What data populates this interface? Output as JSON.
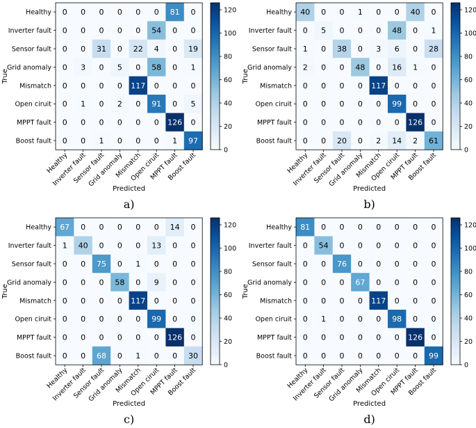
{
  "chart_data": [
    {
      "type": "heatmap",
      "label": "a)",
      "xlabel": "Predicted",
      "ylabel": "True",
      "row_labels": [
        "Healthy",
        "Inverter fault",
        "Sensor fault",
        "Grid anomaly",
        "Mismatch",
        "Open ciruit",
        "MPPT fault",
        "Boost fault"
      ],
      "col_labels": [
        "Healthy",
        "Inverter fault",
        "Sensor fault",
        "Grid anomaly",
        "Mismatch",
        "Open ciruit",
        "MPPT fault",
        "Boost fault"
      ],
      "matrix": [
        [
          0,
          0,
          0,
          0,
          0,
          0,
          81,
          0
        ],
        [
          0,
          0,
          0,
          0,
          0,
          54,
          0,
          0
        ],
        [
          0,
          0,
          31,
          0,
          22,
          4,
          0,
          19
        ],
        [
          0,
          3,
          0,
          5,
          0,
          58,
          0,
          1
        ],
        [
          0,
          0,
          0,
          0,
          117,
          0,
          0,
          0
        ],
        [
          0,
          1,
          0,
          2,
          0,
          91,
          0,
          5
        ],
        [
          0,
          0,
          0,
          0,
          0,
          0,
          126,
          0
        ],
        [
          0,
          0,
          1,
          0,
          0,
          0,
          1,
          97
        ]
      ],
      "vmin": 0,
      "vmax": 126,
      "colorbar_ticks": [
        0,
        20,
        40,
        60,
        80,
        100,
        120
      ],
      "colormap": "Blues"
    },
    {
      "type": "heatmap",
      "label": "b)",
      "xlabel": "Predicted",
      "ylabel": "True",
      "row_labels": [
        "Healthy",
        "Inverter fault",
        "Sensor fault",
        "Grid anomaly",
        "Mismatch",
        "Open ciruit",
        "MPPT fault",
        "Boost fault"
      ],
      "col_labels": [
        "Healthy",
        "Inverter fault",
        "Sensor fault",
        "Grid anomaly",
        "Mismatch",
        "Open ciruit",
        "MPPT fault",
        "Boost fault"
      ],
      "matrix": [
        [
          40,
          0,
          0,
          1,
          0,
          0,
          40,
          0
        ],
        [
          0,
          5,
          0,
          0,
          0,
          48,
          0,
          1
        ],
        [
          1,
          0,
          38,
          0,
          3,
          6,
          0,
          28
        ],
        [
          2,
          0,
          0,
          48,
          0,
          16,
          1,
          0
        ],
        [
          0,
          0,
          0,
          0,
          117,
          0,
          0,
          0
        ],
        [
          0,
          0,
          0,
          0,
          0,
          99,
          0,
          0
        ],
        [
          0,
          0,
          0,
          0,
          0,
          0,
          126,
          0
        ],
        [
          0,
          0,
          20,
          0,
          2,
          14,
          2,
          61
        ]
      ],
      "vmin": 0,
      "vmax": 126,
      "colorbar_ticks": [
        0,
        20,
        40,
        60,
        80,
        100,
        120
      ],
      "colormap": "Blues"
    },
    {
      "type": "heatmap",
      "label": "c)",
      "xlabel": "Predicted",
      "ylabel": "True",
      "row_labels": [
        "Healthy",
        "Inverter fault",
        "Sensor fault",
        "Grid anomaly",
        "Mismatch",
        "Open ciruit",
        "MPPT fault",
        "Boost fault"
      ],
      "col_labels": [
        "Healthy",
        "Inverter fault",
        "Sensor fault",
        "Grid anomaly",
        "Mismatch",
        "Open ciruit",
        "MPPT fault",
        "Boost fault"
      ],
      "matrix": [
        [
          67,
          0,
          0,
          0,
          0,
          0,
          14,
          0
        ],
        [
          1,
          40,
          0,
          0,
          0,
          13,
          0,
          0
        ],
        [
          0,
          0,
          75,
          0,
          1,
          0,
          0,
          0
        ],
        [
          0,
          0,
          0,
          58,
          0,
          9,
          0,
          0
        ],
        [
          0,
          0,
          0,
          0,
          117,
          0,
          0,
          0
        ],
        [
          0,
          0,
          0,
          0,
          0,
          99,
          0,
          0
        ],
        [
          0,
          0,
          0,
          0,
          0,
          0,
          126,
          0
        ],
        [
          0,
          0,
          68,
          0,
          1,
          0,
          0,
          30
        ]
      ],
      "vmin": 0,
      "vmax": 126,
      "colorbar_ticks": [
        0,
        20,
        40,
        60,
        80,
        100,
        120
      ],
      "colormap": "Blues"
    },
    {
      "type": "heatmap",
      "label": "d)",
      "xlabel": "Predicted",
      "ylabel": "True",
      "row_labels": [
        "Healthy",
        "Inverter fault",
        "Sensor fault",
        "Grid anomaly",
        "Mismatch",
        "Open ciruit",
        "MPPT fault",
        "Boost fault"
      ],
      "col_labels": [
        "Healthy",
        "Inverter fault",
        "Sensor fault",
        "Grid anomaly",
        "Mismatch",
        "Open ciruit",
        "MPPT fault",
        "Boost fault"
      ],
      "matrix": [
        [
          81,
          0,
          0,
          0,
          0,
          0,
          0,
          0
        ],
        [
          0,
          54,
          0,
          0,
          0,
          0,
          0,
          0
        ],
        [
          0,
          0,
          76,
          0,
          0,
          0,
          0,
          0
        ],
        [
          0,
          0,
          0,
          67,
          0,
          0,
          0,
          0
        ],
        [
          0,
          0,
          0,
          0,
          117,
          0,
          0,
          0
        ],
        [
          0,
          1,
          0,
          0,
          0,
          98,
          0,
          0
        ],
        [
          0,
          0,
          0,
          0,
          0,
          0,
          126,
          0
        ],
        [
          0,
          0,
          0,
          0,
          0,
          0,
          0,
          99
        ]
      ],
      "vmin": 0,
      "vmax": 126,
      "colorbar_ticks": [
        0,
        20,
        40,
        60,
        80,
        100,
        120
      ],
      "colormap": "Blues"
    }
  ]
}
